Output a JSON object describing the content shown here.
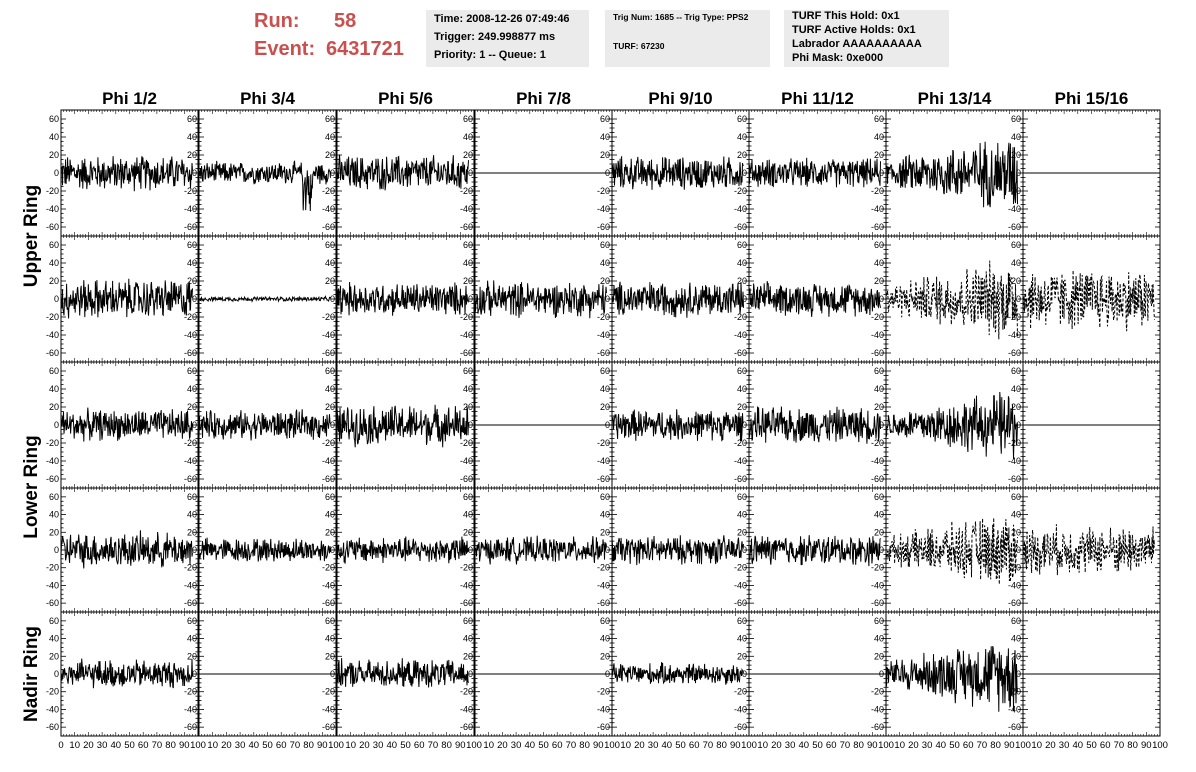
{
  "header": {
    "run_label": "Run:",
    "run_value": "58",
    "event_label": "Event:",
    "event_value": "6431721",
    "box1": [
      "Time: 2008-12-26 07:49:46",
      "Trigger: 249.998877 ms",
      "Priority: 1 -- Queue: 1"
    ],
    "box2": [
      "Trig Num: 1685 -- Trig Type: PPS2",
      "TURF: 67230"
    ],
    "box3": [
      "TURF This Hold: 0x1",
      "TURF Active Holds: 0x1",
      "Labrador AAAAAAAAAA",
      "Phi Mask: 0xe000"
    ],
    "accent_color": "#c9504e",
    "box_color": "#ebebeb"
  },
  "chart_data": {
    "type": "line",
    "columns": [
      "Phi 1/2",
      "Phi 3/4",
      "Phi 5/6",
      "Phi 7/8",
      "Phi 9/10",
      "Phi 11/12",
      "Phi 13/14",
      "Phi 15/16"
    ],
    "ring_labels": [
      "Upper Ring",
      "Lower Ring",
      "Nadir Ring"
    ],
    "ring_row_spans": [
      [
        0,
        1
      ],
      [
        2,
        3
      ],
      [
        4
      ]
    ],
    "rows": 5,
    "ylim": [
      -70,
      70
    ],
    "yticks": [
      -60,
      -40,
      -20,
      0,
      20,
      40,
      60
    ],
    "xlim": [
      0,
      100
    ],
    "xticks": [
      0,
      10,
      20,
      30,
      40,
      50,
      60,
      70,
      80,
      90,
      100
    ],
    "xtick_labels": [
      "0",
      "10",
      "20",
      "30",
      "40",
      "50",
      "60",
      "70",
      "80",
      "90",
      "100"
    ],
    "samples_end": 96,
    "panels": [
      [
        {
          "amp": 16,
          "style": "solid"
        },
        {
          "amp": 10,
          "style": "solid",
          "tail_dip": 35
        },
        {
          "amp": 16,
          "style": "solid"
        },
        {
          "amp": 0,
          "style": "flat"
        },
        {
          "amp": 15,
          "style": "solid"
        },
        {
          "amp": 13,
          "style": "solid"
        },
        {
          "amp": 22,
          "style": "solid",
          "growth": true
        },
        {
          "amp": 0,
          "style": "flat"
        }
      ],
      [
        {
          "amp": 18,
          "style": "solid"
        },
        {
          "amp": 2,
          "style": "solid"
        },
        {
          "amp": 15,
          "style": "solid"
        },
        {
          "amp": 16,
          "style": "solid"
        },
        {
          "amp": 16,
          "style": "solid"
        },
        {
          "amp": 15,
          "style": "solid"
        },
        {
          "amp": 24,
          "style": "dashed",
          "growth": true
        },
        {
          "amp": 28,
          "style": "dashed"
        }
      ],
      [
        {
          "amp": 14,
          "style": "solid"
        },
        {
          "amp": 13,
          "style": "solid"
        },
        {
          "amp": 18,
          "style": "solid"
        },
        {
          "amp": 0,
          "style": "flat"
        },
        {
          "amp": 14,
          "style": "solid"
        },
        {
          "amp": 16,
          "style": "solid"
        },
        {
          "amp": 20,
          "style": "solid",
          "growth": true
        },
        {
          "amp": 0,
          "style": "flat"
        }
      ],
      [
        {
          "amp": 16,
          "style": "solid"
        },
        {
          "amp": 11,
          "style": "solid"
        },
        {
          "amp": 12,
          "style": "solid"
        },
        {
          "amp": 12,
          "style": "solid"
        },
        {
          "amp": 13,
          "style": "solid"
        },
        {
          "amp": 14,
          "style": "solid"
        },
        {
          "amp": 22,
          "style": "dashed",
          "growth": true
        },
        {
          "amp": 22,
          "style": "dashed"
        }
      ],
      [
        {
          "amp": 13,
          "style": "solid"
        },
        {
          "amp": 0,
          "style": "flat"
        },
        {
          "amp": 13,
          "style": "solid"
        },
        {
          "amp": 0,
          "style": "flat"
        },
        {
          "amp": 10,
          "style": "solid"
        },
        {
          "amp": 0,
          "style": "flat"
        },
        {
          "amp": 22,
          "style": "solid",
          "growth": true
        },
        {
          "amp": 0,
          "style": "flat"
        }
      ]
    ]
  }
}
